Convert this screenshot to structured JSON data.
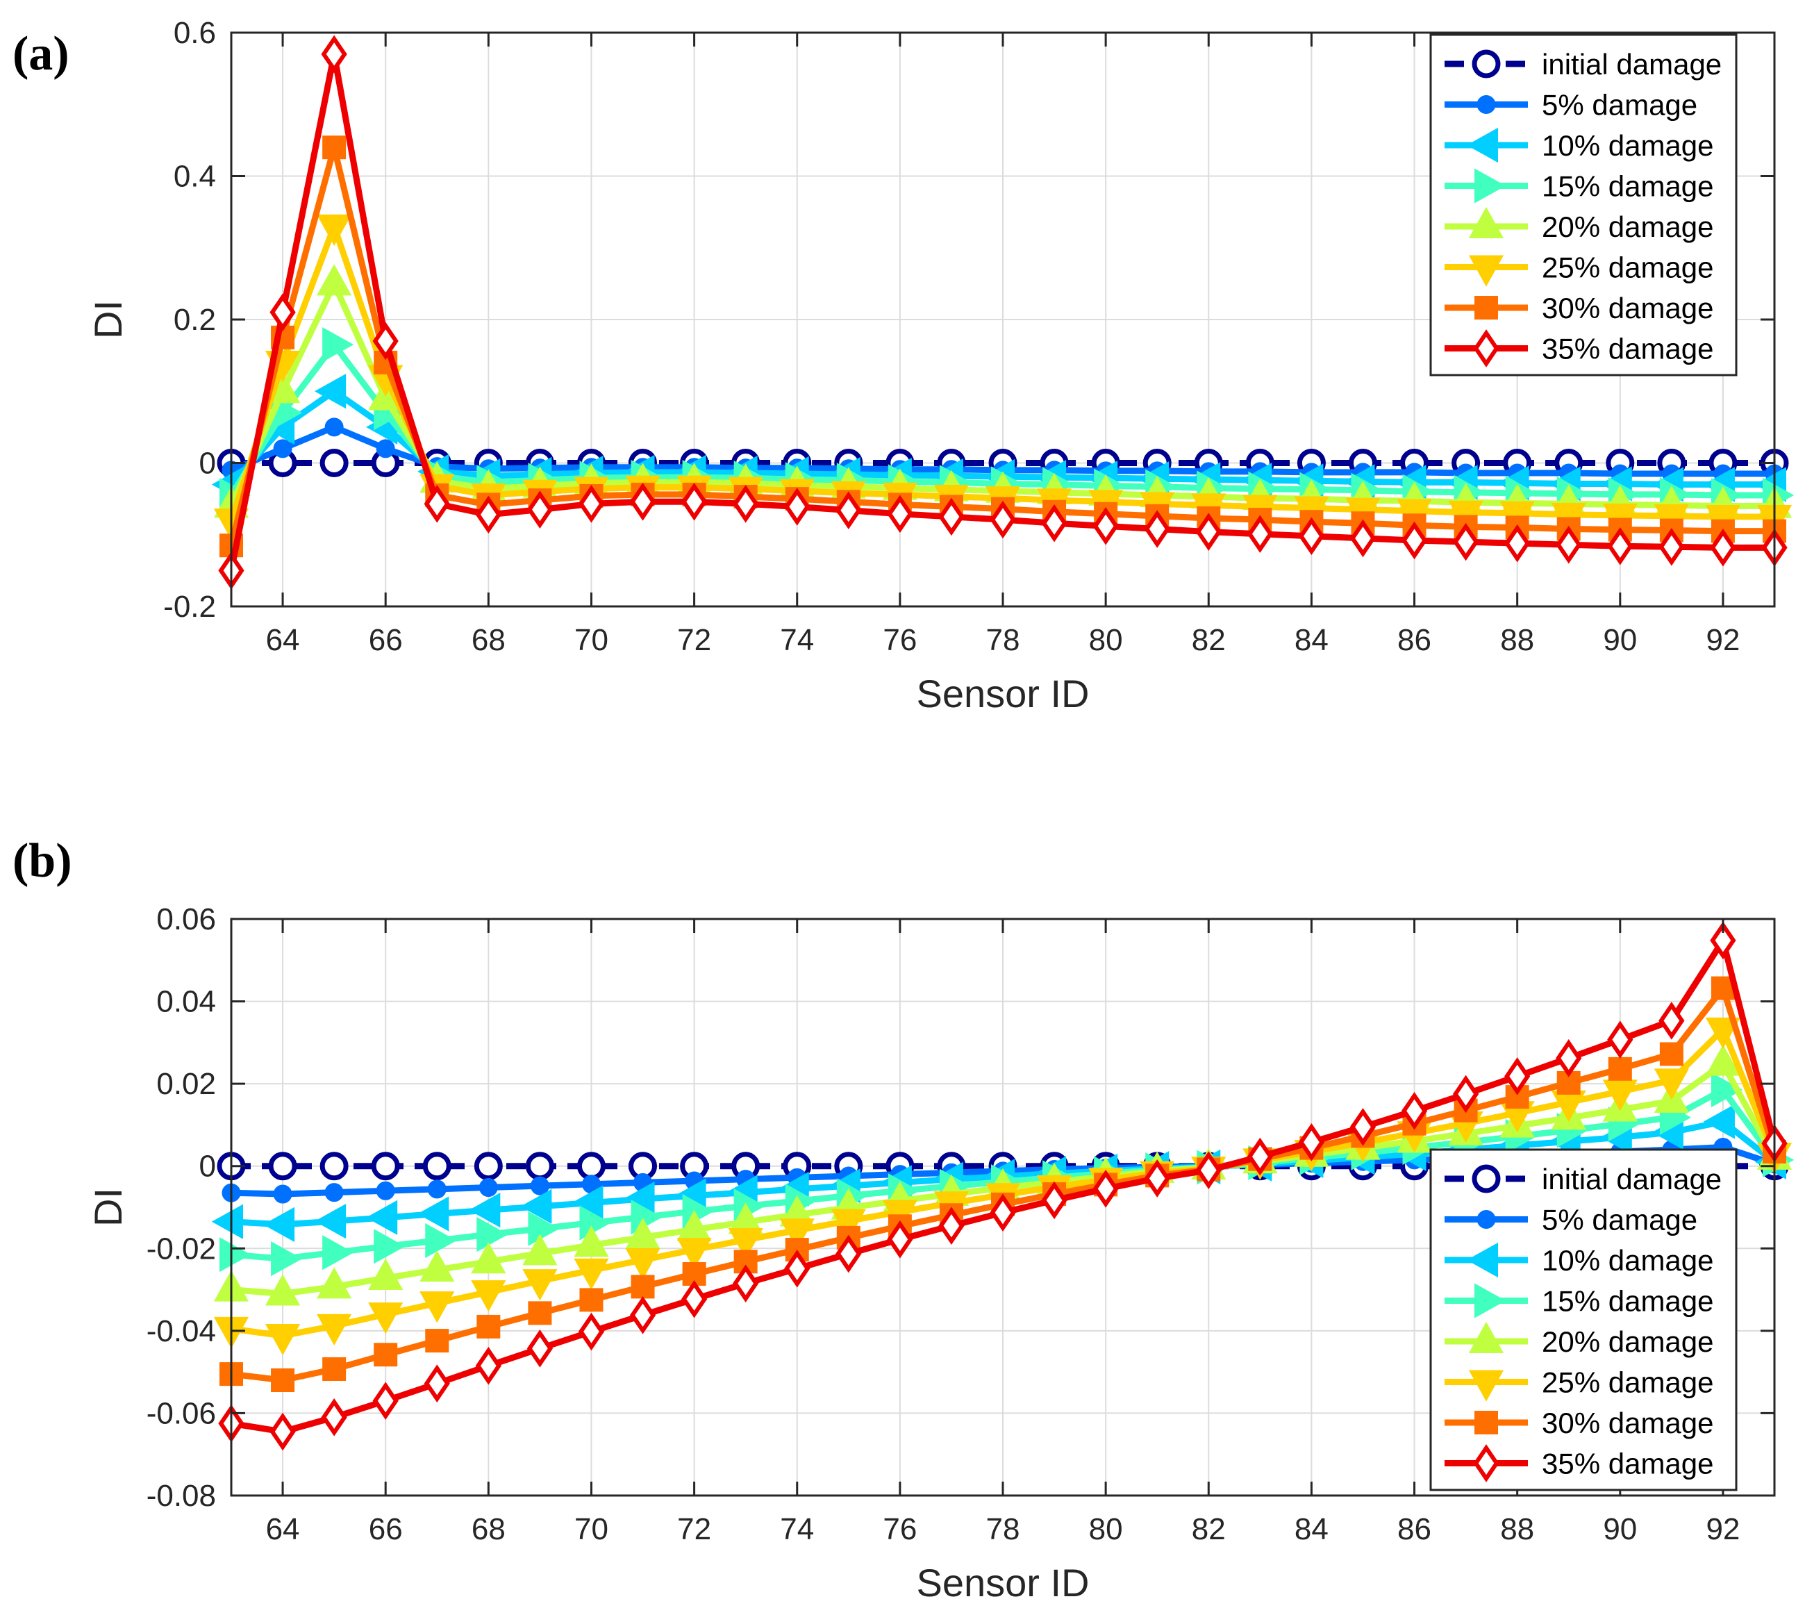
{
  "chart_data": [
    {
      "type": "line",
      "panel_label": "(a)",
      "title": "",
      "xlabel": "Sensor ID",
      "ylabel": "DI",
      "xlim": [
        63,
        93
      ],
      "ylim": [
        -0.2,
        0.6
      ],
      "xticks": [
        64,
        66,
        68,
        70,
        72,
        74,
        76,
        78,
        80,
        82,
        84,
        86,
        88,
        90,
        92
      ],
      "yticks": [
        -0.2,
        0,
        0.2,
        0.4,
        0.6
      ],
      "ytick_labels": [
        "-0.2",
        "0",
        "0.2",
        "0.4",
        "0.6"
      ],
      "grid": true,
      "legend_position": "top-right",
      "x": [
        63,
        64,
        65,
        66,
        67,
        68,
        69,
        70,
        71,
        72,
        73,
        74,
        75,
        76,
        77,
        78,
        79,
        80,
        81,
        82,
        83,
        84,
        85,
        86,
        87,
        88,
        89,
        90,
        91,
        92,
        93
      ],
      "series": [
        {
          "name": "initial damage",
          "color": "#00008f",
          "marker": "circle-open",
          "dashed": true,
          "values": [
            0,
            0,
            0,
            0,
            0,
            0,
            0,
            0,
            0,
            0,
            0,
            0,
            0,
            0,
            0,
            0,
            0,
            0,
            0,
            0,
            0,
            0,
            0,
            0,
            0,
            0,
            0,
            0,
            0,
            0,
            0
          ]
        },
        {
          "name": "5% damage",
          "color": "#0070ff",
          "marker": "circle-filled",
          "dashed": false,
          "values": [
            -0.01,
            0.02,
            0.05,
            0.02,
            -0.005,
            -0.008,
            -0.007,
            -0.006,
            -0.006,
            -0.006,
            -0.007,
            -0.007,
            -0.008,
            -0.009,
            -0.009,
            -0.01,
            -0.01,
            -0.011,
            -0.011,
            -0.012,
            -0.012,
            -0.013,
            -0.013,
            -0.013,
            -0.014,
            -0.014,
            -0.014,
            -0.015,
            -0.015,
            -0.015,
            -0.015
          ]
        },
        {
          "name": "10% damage",
          "color": "#00cfff",
          "marker": "triangle-left",
          "dashed": false,
          "values": [
            -0.03,
            0.05,
            0.1,
            0.05,
            -0.012,
            -0.018,
            -0.016,
            -0.014,
            -0.013,
            -0.013,
            -0.014,
            -0.015,
            -0.016,
            -0.017,
            -0.018,
            -0.019,
            -0.02,
            -0.021,
            -0.022,
            -0.023,
            -0.024,
            -0.025,
            -0.026,
            -0.027,
            -0.027,
            -0.028,
            -0.029,
            -0.029,
            -0.03,
            -0.03,
            -0.03
          ]
        },
        {
          "name": "15% damage",
          "color": "#40ffbf",
          "marker": "triangle-right",
          "dashed": false,
          "values": [
            -0.045,
            0.07,
            0.165,
            0.07,
            -0.018,
            -0.027,
            -0.024,
            -0.021,
            -0.02,
            -0.02,
            -0.021,
            -0.023,
            -0.024,
            -0.026,
            -0.027,
            -0.029,
            -0.03,
            -0.032,
            -0.033,
            -0.035,
            -0.036,
            -0.037,
            -0.038,
            -0.04,
            -0.041,
            -0.042,
            -0.043,
            -0.044,
            -0.044,
            -0.045,
            -0.045
          ]
        },
        {
          "name": "20% damage",
          "color": "#bfff40",
          "marker": "triangle-up",
          "dashed": false,
          "values": [
            -0.06,
            0.1,
            0.25,
            0.09,
            -0.025,
            -0.036,
            -0.032,
            -0.028,
            -0.027,
            -0.027,
            -0.028,
            -0.031,
            -0.033,
            -0.035,
            -0.037,
            -0.039,
            -0.041,
            -0.043,
            -0.045,
            -0.047,
            -0.049,
            -0.05,
            -0.052,
            -0.053,
            -0.055,
            -0.056,
            -0.057,
            -0.058,
            -0.059,
            -0.06,
            -0.06
          ]
        },
        {
          "name": "25% damage",
          "color": "#ffcf00",
          "marker": "triangle-down",
          "dashed": false,
          "values": [
            -0.08,
            0.14,
            0.33,
            0.12,
            -0.032,
            -0.045,
            -0.04,
            -0.036,
            -0.034,
            -0.034,
            -0.036,
            -0.039,
            -0.042,
            -0.044,
            -0.047,
            -0.049,
            -0.052,
            -0.054,
            -0.057,
            -0.059,
            -0.061,
            -0.063,
            -0.065,
            -0.067,
            -0.069,
            -0.07,
            -0.072,
            -0.073,
            -0.074,
            -0.075,
            -0.075
          ]
        },
        {
          "name": "30% damage",
          "color": "#ff6f00",
          "marker": "square",
          "dashed": false,
          "values": [
            -0.115,
            0.175,
            0.44,
            0.14,
            -0.045,
            -0.058,
            -0.052,
            -0.046,
            -0.044,
            -0.044,
            -0.047,
            -0.05,
            -0.054,
            -0.058,
            -0.061,
            -0.064,
            -0.068,
            -0.071,
            -0.074,
            -0.077,
            -0.079,
            -0.082,
            -0.084,
            -0.087,
            -0.089,
            -0.09,
            -0.092,
            -0.093,
            -0.094,
            -0.095,
            -0.095
          ]
        },
        {
          "name": "35% damage",
          "color": "#ef0000",
          "marker": "diamond",
          "dashed": false,
          "values": [
            -0.15,
            0.21,
            0.57,
            0.17,
            -0.057,
            -0.072,
            -0.065,
            -0.057,
            -0.054,
            -0.054,
            -0.057,
            -0.061,
            -0.066,
            -0.071,
            -0.075,
            -0.079,
            -0.084,
            -0.088,
            -0.092,
            -0.096,
            -0.099,
            -0.102,
            -0.105,
            -0.108,
            -0.11,
            -0.112,
            -0.114,
            -0.116,
            -0.117,
            -0.118,
            -0.118
          ]
        }
      ]
    },
    {
      "type": "line",
      "panel_label": "(b)",
      "title": "",
      "xlabel": "Sensor ID",
      "ylabel": "DI",
      "xlim": [
        63,
        93
      ],
      "ylim": [
        -0.08,
        0.06
      ],
      "xticks": [
        64,
        66,
        68,
        70,
        72,
        74,
        76,
        78,
        80,
        82,
        84,
        86,
        88,
        90,
        92
      ],
      "yticks": [
        -0.08,
        -0.06,
        -0.04,
        -0.02,
        0,
        0.02,
        0.04,
        0.06
      ],
      "ytick_labels": [
        "-0.08",
        "-0.06",
        "-0.04",
        "-0.02",
        "0",
        "0.02",
        "0.04",
        "0.06"
      ],
      "grid": true,
      "legend_position": "bottom-right",
      "x": [
        63,
        64,
        65,
        66,
        67,
        68,
        69,
        70,
        71,
        72,
        73,
        74,
        75,
        76,
        77,
        78,
        79,
        80,
        81,
        82,
        83,
        84,
        85,
        86,
        87,
        88,
        89,
        90,
        91,
        92,
        93
      ],
      "series": [
        {
          "name": "initial damage",
          "color": "#00008f",
          "marker": "circle-open",
          "dashed": true,
          "values": [
            0,
            0,
            0,
            0,
            0,
            0,
            0,
            0,
            0,
            0,
            0,
            0,
            0,
            0,
            0,
            0,
            0,
            0,
            0,
            0,
            0,
            0,
            0,
            0,
            0,
            0,
            0,
            0,
            0,
            0,
            0
          ]
        },
        {
          "name": "5% damage",
          "color": "#0070ff",
          "marker": "circle-filled",
          "dashed": false,
          "values": [
            -0.0065,
            -0.0068,
            -0.0064,
            -0.006,
            -0.0056,
            -0.0052,
            -0.0048,
            -0.0044,
            -0.004,
            -0.0036,
            -0.0032,
            -0.0028,
            -0.0024,
            -0.002,
            -0.0016,
            -0.0012,
            -0.0008,
            -0.0005,
            -0.0002,
            0,
            0.0003,
            0.0007,
            0.0011,
            0.0015,
            0.002,
            0.0025,
            0.003,
            0.0035,
            0.004,
            0.0046,
            0.0005
          ]
        },
        {
          "name": "10% damage",
          "color": "#00cfff",
          "marker": "triangle-left",
          "dashed": false,
          "values": [
            -0.0135,
            -0.0142,
            -0.0134,
            -0.0125,
            -0.0116,
            -0.0107,
            -0.0098,
            -0.0089,
            -0.008,
            -0.0072,
            -0.0064,
            -0.0056,
            -0.0048,
            -0.004,
            -0.0032,
            -0.0025,
            -0.0018,
            -0.0012,
            -0.0006,
            -0.0002,
            0.0005,
            0.0013,
            0.0021,
            0.003,
            0.004,
            0.005,
            0.006,
            0.007,
            0.0082,
            0.0108,
            0.001
          ]
        },
        {
          "name": "15% damage",
          "color": "#40ffbf",
          "marker": "triangle-right",
          "dashed": false,
          "values": [
            -0.0215,
            -0.0225,
            -0.021,
            -0.0195,
            -0.0181,
            -0.0166,
            -0.0152,
            -0.0138,
            -0.0124,
            -0.011,
            -0.0097,
            -0.0085,
            -0.0072,
            -0.006,
            -0.0049,
            -0.0038,
            -0.0028,
            -0.0018,
            -0.0009,
            -0.0003,
            0.0008,
            0.002,
            0.0032,
            0.0045,
            0.0058,
            0.0072,
            0.0087,
            0.0102,
            0.0118,
            0.0185,
            0.0015
          ]
        },
        {
          "name": "20% damage",
          "color": "#bfff40",
          "marker": "triangle-up",
          "dashed": false,
          "values": [
            -0.03,
            -0.031,
            -0.0293,
            -0.0272,
            -0.0252,
            -0.0232,
            -0.0212,
            -0.0192,
            -0.0173,
            -0.0154,
            -0.0136,
            -0.0118,
            -0.0101,
            -0.0084,
            -0.0068,
            -0.0053,
            -0.0039,
            -0.0025,
            -0.0012,
            -0.0004,
            0.0011,
            0.0027,
            0.0044,
            0.0061,
            0.0079,
            0.0098,
            0.0117,
            0.0137,
            0.0158,
            0.0248,
            0.002
          ]
        },
        {
          "name": "25% damage",
          "color": "#ffcf00",
          "marker": "triangle-down",
          "dashed": false,
          "values": [
            -0.0395,
            -0.0412,
            -0.0388,
            -0.036,
            -0.0333,
            -0.0306,
            -0.0279,
            -0.0253,
            -0.0228,
            -0.0203,
            -0.0179,
            -0.0156,
            -0.0133,
            -0.0111,
            -0.009,
            -0.007,
            -0.0051,
            -0.0033,
            -0.0017,
            -0.0006,
            0.0014,
            0.0035,
            0.0057,
            0.008,
            0.0104,
            0.0129,
            0.0155,
            0.0181,
            0.0208,
            0.0332,
            0.0028
          ]
        },
        {
          "name": "30% damage",
          "color": "#ff6f00",
          "marker": "square",
          "dashed": false,
          "values": [
            -0.0505,
            -0.052,
            -0.0493,
            -0.0458,
            -0.0424,
            -0.039,
            -0.0357,
            -0.0325,
            -0.0293,
            -0.0262,
            -0.0232,
            -0.0203,
            -0.0174,
            -0.0146,
            -0.0119,
            -0.0093,
            -0.0068,
            -0.0045,
            -0.0023,
            -0.0008,
            0.0017,
            0.0044,
            0.0073,
            0.0103,
            0.0135,
            0.0168,
            0.0202,
            0.0236,
            0.0272,
            0.0432,
            0.0035
          ]
        },
        {
          "name": "35% damage",
          "color": "#ef0000",
          "marker": "diamond",
          "dashed": false,
          "values": [
            -0.0625,
            -0.0645,
            -0.061,
            -0.057,
            -0.0528,
            -0.0485,
            -0.0443,
            -0.0402,
            -0.0362,
            -0.0323,
            -0.0285,
            -0.0249,
            -0.0213,
            -0.0178,
            -0.0145,
            -0.0113,
            -0.0083,
            -0.0055,
            -0.003,
            -0.001,
            0.0023,
            0.0058,
            0.0095,
            0.0134,
            0.0175,
            0.0218,
            0.0262,
            0.0307,
            0.0353,
            0.0548,
            0.0055
          ]
        }
      ]
    }
  ]
}
